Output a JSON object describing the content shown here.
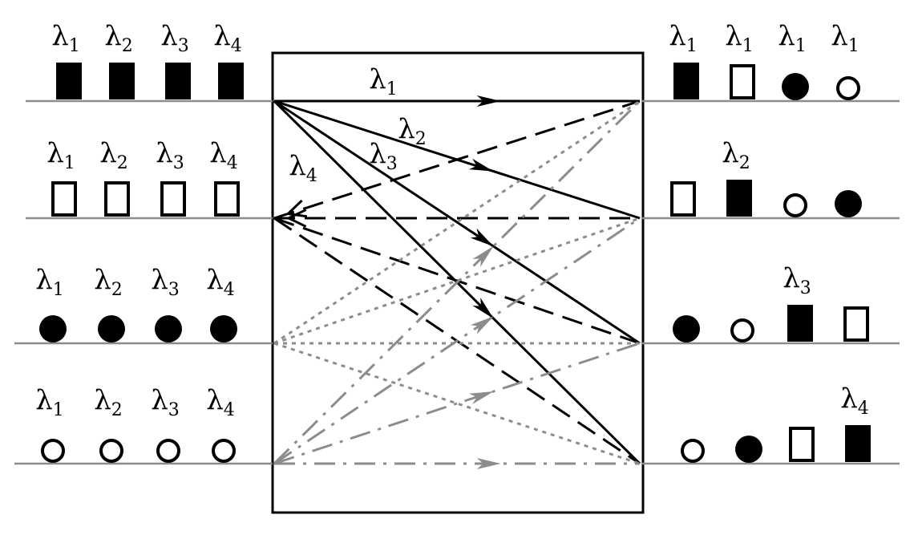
{
  "symbol": "λ",
  "colors": {
    "ink": "#000000",
    "gray": "#8c8c8c",
    "background": "#ffffff"
  },
  "marker_types": [
    "filled-rect",
    "open-rect",
    "filled-circle",
    "open-circle"
  ],
  "left_rows": [
    {
      "marker": "filled-rect",
      "labels": [
        "1",
        "2",
        "3",
        "4"
      ]
    },
    {
      "marker": "open-rect",
      "labels": [
        "1",
        "2",
        "3",
        "4"
      ]
    },
    {
      "marker": "filled-circle",
      "labels": [
        "1",
        "2",
        "3",
        "4"
      ]
    },
    {
      "marker": "open-circle",
      "labels": [
        "1",
        "2",
        "3",
        "4"
      ]
    }
  ],
  "right_rows": [
    {
      "markers": [
        "filled-rect",
        "open-rect",
        "filled-circle",
        "open-circle"
      ],
      "labels": [
        "1",
        "1",
        "1",
        "1"
      ]
    },
    {
      "markers": [
        "open-rect",
        "filled-rect",
        "open-circle",
        "filled-circle"
      ],
      "labels": [
        "",
        "2",
        "",
        ""
      ]
    },
    {
      "markers": [
        "filled-circle",
        "open-circle",
        "filled-rect",
        "open-rect"
      ],
      "labels": [
        "",
        "",
        "3",
        ""
      ]
    },
    {
      "markers": [
        "open-circle",
        "filled-circle",
        "open-rect",
        "filled-rect"
      ],
      "labels": [
        "",
        "",
        "",
        "4"
      ]
    }
  ],
  "inner_labels": [
    "1",
    "2",
    "3",
    "4"
  ],
  "connections": [
    {
      "from": 0,
      "to": 0,
      "style": "solid",
      "arrow": "forward"
    },
    {
      "from": 0,
      "to": 1,
      "style": "solid",
      "arrow": "forward"
    },
    {
      "from": 0,
      "to": 2,
      "style": "solid",
      "arrow": "forward"
    },
    {
      "from": 0,
      "to": 3,
      "style": "solid",
      "arrow": "forward"
    },
    {
      "from": 1,
      "to": 0,
      "style": "dash",
      "arrow": "backward"
    },
    {
      "from": 1,
      "to": 1,
      "style": "dash",
      "arrow": "backward"
    },
    {
      "from": 1,
      "to": 2,
      "style": "dash",
      "arrow": "none"
    },
    {
      "from": 1,
      "to": 3,
      "style": "dash",
      "arrow": "none"
    },
    {
      "from": 2,
      "to": 0,
      "style": "dot",
      "arrow": "none"
    },
    {
      "from": 2,
      "to": 1,
      "style": "dot",
      "arrow": "none"
    },
    {
      "from": 2,
      "to": 2,
      "style": "dot",
      "arrow": "none"
    },
    {
      "from": 2,
      "to": 3,
      "style": "dot",
      "arrow": "none"
    },
    {
      "from": 3,
      "to": 0,
      "style": "dashdot",
      "arrow": "forward"
    },
    {
      "from": 3,
      "to": 1,
      "style": "dashdot",
      "arrow": "forward"
    },
    {
      "from": 3,
      "to": 2,
      "style": "dashdot",
      "arrow": "forward"
    },
    {
      "from": 3,
      "to": 3,
      "style": "dashdot",
      "arrow": "forward"
    }
  ]
}
